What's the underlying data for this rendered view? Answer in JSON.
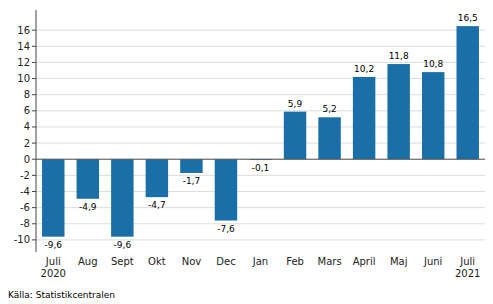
{
  "chart_data": {
    "type": "bar",
    "categories": [
      "Juli\n2020",
      "Aug",
      "Sept",
      "Okt",
      "Nov",
      "Dec",
      "Jan",
      "Feb",
      "Mars",
      "April",
      "Maj",
      "Juni",
      "Juli\n2021"
    ],
    "values": [
      -9.6,
      -4.9,
      -9.6,
      -4.7,
      -1.7,
      -7.6,
      -0.1,
      5.9,
      5.2,
      10.2,
      11.8,
      10.8,
      16.5
    ],
    "value_labels": [
      "-9,6",
      "-4,9",
      "-9,6",
      "-4,7",
      "-1,7",
      "-7,6",
      "-0,1",
      "5,9",
      "5,2",
      "10,2",
      "11,8",
      "10,8",
      "16,5"
    ],
    "color": "#1a6fa8",
    "ylim": [
      -11.5,
      18.5
    ],
    "yticks": [
      -10,
      -8,
      -6,
      -4,
      -2,
      0,
      2,
      4,
      6,
      8,
      10,
      12,
      14,
      16
    ],
    "grid": true,
    "data_labels": true,
    "annotations": [
      "Källa: Statistikcentralen"
    ]
  }
}
